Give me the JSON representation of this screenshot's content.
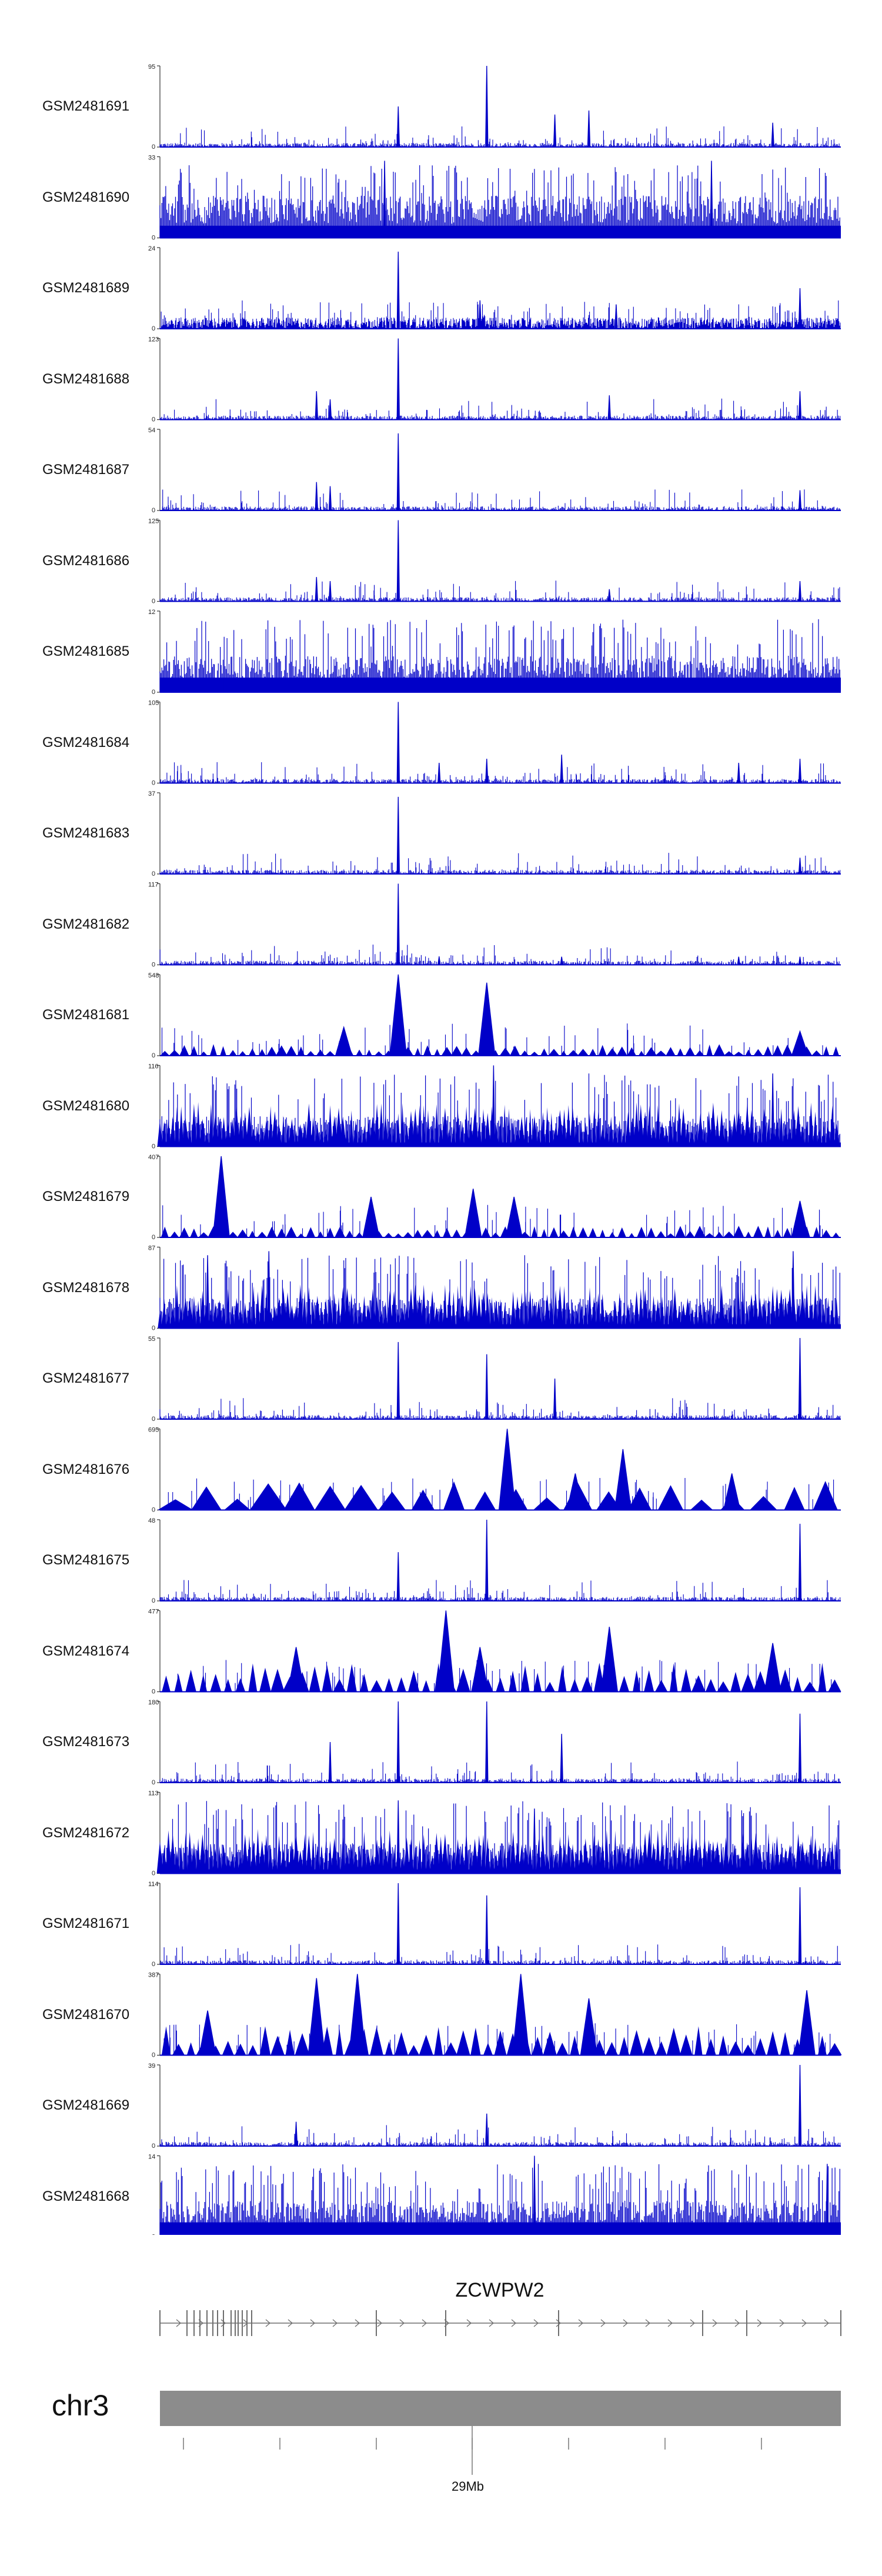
{
  "chart_data": {
    "type": "area",
    "chromosome": "chr3",
    "gene": "ZCWPW2",
    "position_tick_label": "29Mb",
    "track_color": "#0000c8",
    "gene_color": "#6e6e6e",
    "ideogram_color": "#8c8c8c",
    "tracks": [
      {
        "name": "GSM2481691",
        "ymax": "95",
        "ymin": "0",
        "style": "sparse-peaks",
        "peaks": [
          [
            0.35,
            0.5
          ],
          [
            0.48,
            1.0
          ],
          [
            0.58,
            0.4
          ],
          [
            0.63,
            0.45
          ],
          [
            0.9,
            0.3
          ]
        ]
      },
      {
        "name": "GSM2481690",
        "ymax": "33",
        "ymin": "0",
        "style": "dense",
        "peaks": [
          [
            0.33,
            0.95
          ],
          [
            0.81,
            0.95
          ]
        ]
      },
      {
        "name": "GSM2481689",
        "ymax": "24",
        "ymin": "0",
        "style": "dense-low",
        "peaks": [
          [
            0.35,
            0.95
          ],
          [
            0.47,
            0.35
          ],
          [
            0.67,
            0.3
          ],
          [
            0.94,
            0.5
          ]
        ]
      },
      {
        "name": "GSM2481688",
        "ymax": "123",
        "ymin": "0",
        "style": "sparse-peaks",
        "peaks": [
          [
            0.23,
            0.35
          ],
          [
            0.25,
            0.25
          ],
          [
            0.35,
            1.0
          ],
          [
            0.66,
            0.3
          ],
          [
            0.94,
            0.35
          ]
        ]
      },
      {
        "name": "GSM2481687",
        "ymax": "54",
        "ymin": "0",
        "style": "sparse-peaks",
        "peaks": [
          [
            0.23,
            0.35
          ],
          [
            0.25,
            0.3
          ],
          [
            0.35,
            0.95
          ],
          [
            0.94,
            0.25
          ]
        ]
      },
      {
        "name": "GSM2481686",
        "ymax": "125",
        "ymin": "0",
        "style": "sparse-peaks",
        "peaks": [
          [
            0.23,
            0.3
          ],
          [
            0.25,
            0.25
          ],
          [
            0.35,
            1.0
          ],
          [
            0.66,
            0.15
          ],
          [
            0.94,
            0.25
          ]
        ]
      },
      {
        "name": "GSM2481685",
        "ymax": "12",
        "ymin": "0",
        "style": "dense-block",
        "peaks": []
      },
      {
        "name": "GSM2481684",
        "ymax": "105",
        "ymin": "0",
        "style": "sparse-peaks",
        "peaks": [
          [
            0.35,
            1.0
          ],
          [
            0.41,
            0.25
          ],
          [
            0.48,
            0.3
          ],
          [
            0.59,
            0.35
          ],
          [
            0.85,
            0.25
          ],
          [
            0.94,
            0.3
          ]
        ]
      },
      {
        "name": "GSM2481683",
        "ymax": "37",
        "ymin": "0",
        "style": "sparse-peaks",
        "peaks": [
          [
            0.35,
            0.95
          ],
          [
            0.94,
            0.2
          ]
        ]
      },
      {
        "name": "GSM2481682",
        "ymax": "117",
        "ymin": "0",
        "style": "sparse-peaks",
        "peaks": [
          [
            0.35,
            1.0
          ],
          [
            0.41,
            0.1
          ],
          [
            0.59,
            0.1
          ],
          [
            0.85,
            0.1
          ],
          [
            0.94,
            0.1
          ]
        ]
      },
      {
        "name": "GSM2481681",
        "ymax": "548",
        "ymin": "0",
        "style": "triangles-small",
        "peaks": [
          [
            0.35,
            1.0
          ],
          [
            0.48,
            0.9
          ],
          [
            0.27,
            0.35
          ],
          [
            0.94,
            0.3
          ]
        ]
      },
      {
        "name": "GSM2481680",
        "ymax": "116",
        "ymin": "0",
        "style": "dense-spikes",
        "peaks": [
          [
            0.49,
            1.0
          ],
          [
            0.9,
            0.9
          ]
        ]
      },
      {
        "name": "GSM2481679",
        "ymax": "407",
        "ymin": "0",
        "style": "triangles-small",
        "peaks": [
          [
            0.09,
            1.0
          ],
          [
            0.31,
            0.5
          ],
          [
            0.46,
            0.6
          ],
          [
            0.52,
            0.5
          ],
          [
            0.94,
            0.45
          ]
        ]
      },
      {
        "name": "GSM2481678",
        "ymax": "87",
        "ymin": "0",
        "style": "dense-spikes",
        "peaks": [
          [
            0.07,
            0.9
          ],
          [
            0.16,
            0.95
          ],
          [
            0.93,
            0.95
          ]
        ]
      },
      {
        "name": "GSM2481677",
        "ymax": "55",
        "ymin": "0",
        "style": "sparse-peaks",
        "peaks": [
          [
            0.35,
            0.95
          ],
          [
            0.48,
            0.8
          ],
          [
            0.58,
            0.5
          ],
          [
            0.94,
            1.0
          ]
        ]
      },
      {
        "name": "GSM2481676",
        "ymax": "695",
        "ymin": "0",
        "style": "triangles-large",
        "peaks": [
          [
            0.51,
            1.0
          ],
          [
            0.68,
            0.75
          ],
          [
            0.61,
            0.45
          ],
          [
            0.84,
            0.45
          ]
        ]
      },
      {
        "name": "GSM2481675",
        "ymax": "48",
        "ymin": "0",
        "style": "sparse-peaks",
        "peaks": [
          [
            0.35,
            0.6
          ],
          [
            0.48,
            1.0
          ],
          [
            0.94,
            0.95
          ]
        ]
      },
      {
        "name": "GSM2481674",
        "ymax": "477",
        "ymin": "0",
        "style": "triangles-mid",
        "peaks": [
          [
            0.42,
            1.0
          ],
          [
            0.47,
            0.55
          ],
          [
            0.66,
            0.8
          ],
          [
            0.9,
            0.6
          ],
          [
            0.2,
            0.55
          ]
        ]
      },
      {
        "name": "GSM2481673",
        "ymax": "180",
        "ymin": "0",
        "style": "sparse-peaks",
        "peaks": [
          [
            0.35,
            1.0
          ],
          [
            0.48,
            1.0
          ],
          [
            0.59,
            0.6
          ],
          [
            0.94,
            0.85
          ],
          [
            0.25,
            0.5
          ]
        ]
      },
      {
        "name": "GSM2481672",
        "ymax": "113",
        "ymin": "0",
        "style": "dense-spikes",
        "peaks": [
          [
            0.35,
            0.9
          ],
          [
            0.55,
            0.8
          ]
        ]
      },
      {
        "name": "GSM2481671",
        "ymax": "114",
        "ymin": "0",
        "style": "sparse-peaks",
        "peaks": [
          [
            0.35,
            1.0
          ],
          [
            0.48,
            0.85
          ],
          [
            0.94,
            0.95
          ]
        ]
      },
      {
        "name": "GSM2481670",
        "ymax": "387",
        "ymin": "0",
        "style": "triangles-mid",
        "peaks": [
          [
            0.29,
            1.0
          ],
          [
            0.23,
            0.95
          ],
          [
            0.53,
            1.0
          ],
          [
            0.63,
            0.7
          ],
          [
            0.07,
            0.55
          ],
          [
            0.95,
            0.8
          ]
        ]
      },
      {
        "name": "GSM2481669",
        "ymax": "39",
        "ymin": "0",
        "style": "sparse-peaks",
        "peaks": [
          [
            0.94,
            1.0
          ],
          [
            0.48,
            0.4
          ],
          [
            0.2,
            0.3
          ]
        ]
      },
      {
        "name": "GSM2481668",
        "ymax": "14",
        "ymin": "0",
        "style": "dense-block",
        "peaks": [
          [
            0.55,
            1.0
          ],
          [
            0.98,
            0.9
          ]
        ]
      }
    ]
  }
}
